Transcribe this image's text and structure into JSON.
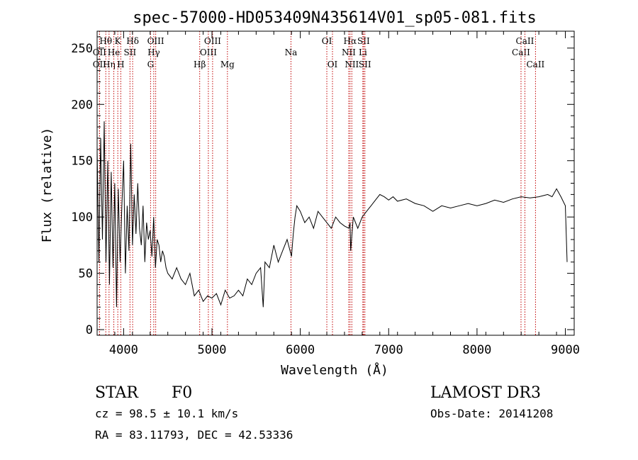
{
  "chart_data": {
    "type": "line",
    "title": "spec-57000-HD053409N435614V01_sp05-081.fits",
    "xlabel": "Wavelength (Å)",
    "ylabel": "Flux (relative)",
    "xlim": [
      3700,
      9100
    ],
    "ylim": [
      -5,
      265
    ],
    "x_ticks": [
      4000,
      5000,
      6000,
      7000,
      8000,
      9000
    ],
    "y_ticks": [
      0,
      50,
      100,
      150,
      200,
      250
    ],
    "series": [
      {
        "name": "flux",
        "x": [
          3700,
          3720,
          3740,
          3760,
          3780,
          3800,
          3820,
          3840,
          3860,
          3880,
          3900,
          3920,
          3940,
          3960,
          3980,
          4000,
          4020,
          4040,
          4060,
          4080,
          4100,
          4120,
          4140,
          4160,
          4180,
          4200,
          4220,
          4240,
          4260,
          4280,
          4300,
          4320,
          4340,
          4360,
          4380,
          4400,
          4420,
          4440,
          4460,
          4480,
          4500,
          4550,
          4600,
          4650,
          4700,
          4750,
          4800,
          4850,
          4900,
          4950,
          5000,
          5050,
          5100,
          5150,
          5200,
          5250,
          5300,
          5350,
          5400,
          5450,
          5500,
          5550,
          5580,
          5600,
          5650,
          5700,
          5750,
          5800,
          5850,
          5900,
          5920,
          5940,
          5960,
          6000,
          6050,
          6100,
          6150,
          6200,
          6250,
          6300,
          6350,
          6400,
          6450,
          6500,
          6550,
          6563,
          6570,
          6600,
          6650,
          6700,
          6750,
          6800,
          6850,
          6900,
          6950,
          7000,
          7050,
          7100,
          7200,
          7300,
          7400,
          7500,
          7600,
          7700,
          7800,
          7900,
          8000,
          8100,
          8200,
          8300,
          8400,
          8500,
          8600,
          8700,
          8750,
          8800,
          8850,
          8900,
          8950,
          9000,
          9020
        ],
        "values": [
          160,
          60,
          170,
          80,
          185,
          60,
          150,
          40,
          140,
          55,
          130,
          20,
          125,
          60,
          110,
          150,
          50,
          110,
          70,
          165,
          75,
          120,
          85,
          130,
          90,
          75,
          110,
          60,
          95,
          80,
          88,
          65,
          100,
          55,
          80,
          75,
          60,
          70,
          65,
          55,
          50,
          45,
          55,
          45,
          40,
          50,
          30,
          35,
          25,
          30,
          28,
          32,
          22,
          35,
          28,
          30,
          35,
          30,
          45,
          40,
          50,
          55,
          20,
          60,
          55,
          75,
          60,
          70,
          80,
          65,
          85,
          100,
          110,
          105,
          95,
          100,
          90,
          105,
          100,
          95,
          90,
          100,
          95,
          92,
          90,
          95,
          70,
          100,
          90,
          100,
          105,
          110,
          115,
          120,
          118,
          115,
          118,
          114,
          116,
          112,
          110,
          105,
          110,
          108,
          110,
          112,
          110,
          112,
          115,
          113,
          116,
          118,
          117,
          118,
          119,
          120,
          118,
          125,
          118,
          110,
          60
        ]
      }
    ],
    "line_markers": [
      {
        "label": "Hθ",
        "wave": 3798,
        "row": 1
      },
      {
        "label": "OII",
        "wave": 3727,
        "row": 3
      },
      {
        "label": "OII",
        "wave": 3727,
        "row": 2
      },
      {
        "label": "Hη",
        "wave": 3835,
        "row": 3
      },
      {
        "label": "He",
        "wave": 3889,
        "row": 2
      },
      {
        "label": "K",
        "wave": 3934,
        "row": 1
      },
      {
        "label": "H",
        "wave": 3968,
        "row": 3
      },
      {
        "label": "SII",
        "wave": 4072,
        "row": 2
      },
      {
        "label": "Hδ",
        "wave": 4102,
        "row": 1
      },
      {
        "label": "G",
        "wave": 4305,
        "row": 3
      },
      {
        "label": "Hγ",
        "wave": 4341,
        "row": 2
      },
      {
        "label": "OIII",
        "wave": 4363,
        "row": 1
      },
      {
        "label": "Hβ",
        "wave": 4861,
        "row": 3
      },
      {
        "label": "OIII",
        "wave": 4959,
        "row": 2
      },
      {
        "label": "OIII",
        "wave": 5007,
        "row": 1
      },
      {
        "label": "Mg",
        "wave": 5175,
        "row": 3
      },
      {
        "label": "Na",
        "wave": 5894,
        "row": 2
      },
      {
        "label": "OI",
        "wave": 6300,
        "row": 1
      },
      {
        "label": "OI",
        "wave": 6364,
        "row": 3
      },
      {
        "label": "NII",
        "wave": 6548,
        "row": 2
      },
      {
        "label": "Hα",
        "wave": 6563,
        "row": 1
      },
      {
        "label": "NII",
        "wave": 6583,
        "row": 3
      },
      {
        "label": "Li",
        "wave": 6708,
        "row": 2
      },
      {
        "label": "SII",
        "wave": 6716,
        "row": 1
      },
      {
        "label": "SII",
        "wave": 6731,
        "row": 3
      },
      {
        "label": "CaII",
        "wave": 8498,
        "row": 2
      },
      {
        "label": "CaII",
        "wave": 8542,
        "row": 1
      },
      {
        "label": "CaII",
        "wave": 8662,
        "row": 3
      }
    ]
  },
  "info": {
    "class": "STAR",
    "subclass": "F0",
    "cz": "cz = 98.5 ± 10.1 km/s",
    "coords": "RA =  83.11793, DEC =  42.53336",
    "survey": "LAMOST DR3",
    "obs_date": "Obs-Date: 20141208"
  }
}
